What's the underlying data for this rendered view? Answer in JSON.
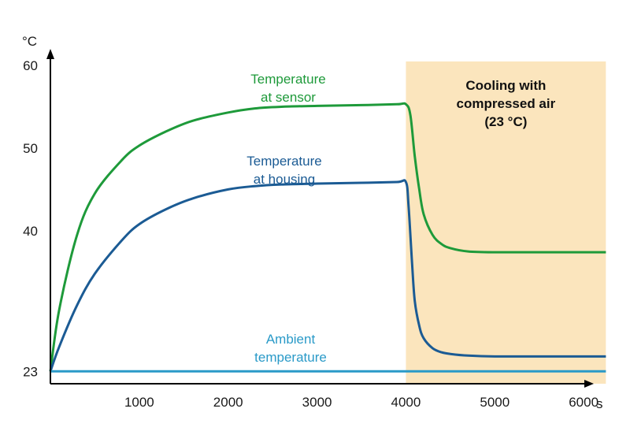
{
  "chart_data": {
    "type": "line",
    "title": "",
    "xlabel": "s",
    "ylabel": "°C",
    "xlim": [
      0,
      6300
    ],
    "ylim": [
      21.5,
      62
    ],
    "x_ticks": [
      1000,
      2000,
      3000,
      4000,
      5000,
      6000
    ],
    "x_tick_labels": [
      "1000",
      "2000",
      "3000",
      "4000",
      "5000",
      "6000"
    ],
    "y_ticks": [
      23,
      40,
      50,
      60
    ],
    "y_tick_labels": [
      "23",
      "40",
      "50",
      "60"
    ],
    "grid": false,
    "legend": "none",
    "shaded_region": {
      "x_start": 4000,
      "x_end": 6250,
      "label_lines": [
        "Cooling with",
        "compressed air",
        "(23 °C)"
      ],
      "color": "#fbe5bd"
    },
    "series": [
      {
        "label_lines": [
          "Temperature",
          "at sensor"
        ],
        "color": "#1e9a3a",
        "x": [
          0,
          100,
          300,
          500,
          800,
          1000,
          1300,
          1600,
          2000,
          2300,
          2600,
          3000,
          3500,
          3900,
          4000,
          4050,
          4100,
          4150,
          4200,
          4300,
          4400,
          4500,
          4700,
          5000,
          5500,
          6000,
          6250
        ],
        "y": [
          23,
          30.5,
          39.5,
          44.5,
          48.5,
          50.3,
          52,
          53.3,
          54.3,
          54.8,
          55,
          55.1,
          55.2,
          55.3,
          55.3,
          54,
          49,
          45,
          42,
          39.5,
          38.4,
          37.9,
          37.5,
          37.4,
          37.4,
          37.4,
          37.4
        ]
      },
      {
        "label_lines": [
          "Temperature",
          "at housing"
        ],
        "color": "#1b5b94",
        "x": [
          0,
          100,
          300,
          500,
          800,
          1000,
          1300,
          1600,
          2000,
          2300,
          2600,
          3000,
          3500,
          3900,
          4000,
          4030,
          4070,
          4100,
          4150,
          4200,
          4300,
          4400,
          4500,
          4700,
          5000,
          5500,
          6000,
          6250
        ],
        "y": [
          23,
          26,
          31,
          34.8,
          38.8,
          40.8,
          42.6,
          43.9,
          45,
          45.4,
          45.6,
          45.7,
          45.8,
          45.9,
          45.9,
          43,
          36,
          31.5,
          28.5,
          27,
          25.8,
          25.3,
          25.1,
          24.9,
          24.8,
          24.8,
          24.8,
          24.8
        ]
      },
      {
        "label_lines": [
          "Ambient",
          "temperature"
        ],
        "color": "#2a9ac8",
        "x": [
          0,
          6250
        ],
        "y": [
          23,
          23
        ]
      }
    ]
  }
}
